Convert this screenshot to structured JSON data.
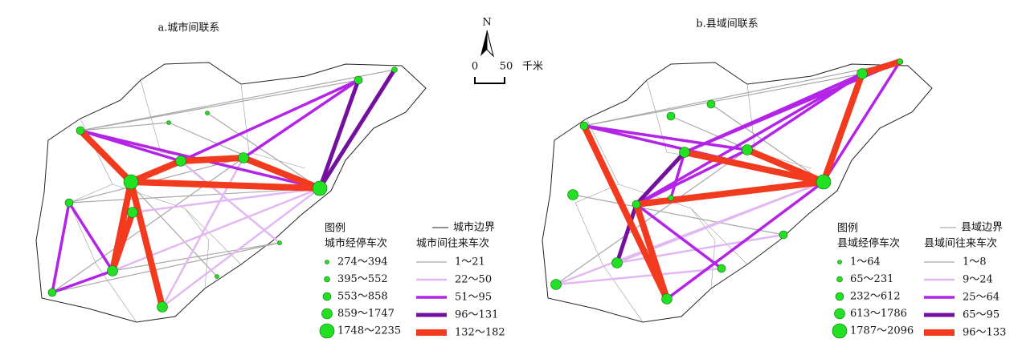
{
  "north_arrow": {
    "label": "N"
  },
  "scale_bar": {
    "start": "0",
    "end": "50",
    "unit": "千米"
  },
  "maps": [
    {
      "title": "a.城市间联系",
      "legend": {
        "title": "图例",
        "boundary_label": "城市边界",
        "node_title": "城市经停车次",
        "node_classes": [
          "274～394",
          "395～552",
          "553～858",
          "859～1747",
          "1748～2235"
        ],
        "link_title": "城市间往来车次",
        "link_classes": [
          "1～21",
          "22～50",
          "51～95",
          "96～131",
          "132～182"
        ]
      }
    },
    {
      "title": "b.县域间联系",
      "legend": {
        "title": "图例",
        "boundary_label": "县域边界",
        "node_title": "县域经停车次",
        "node_classes": [
          "1～64",
          "65～231",
          "232～612",
          "613～1786",
          "1787～2096"
        ],
        "link_title": "县域间往来车次",
        "link_classes": [
          "1～8",
          "9～24",
          "25～64",
          "65～95",
          "96～133"
        ]
      }
    }
  ]
}
